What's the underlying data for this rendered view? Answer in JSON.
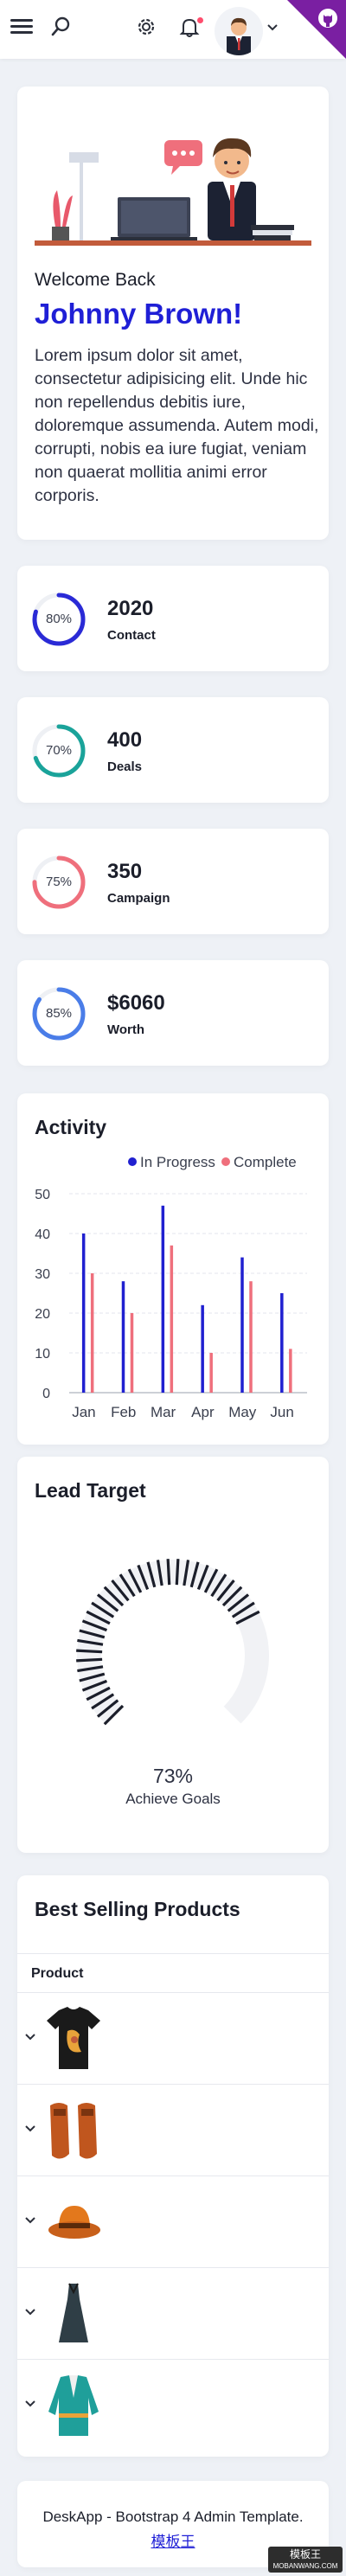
{
  "header": {
    "icons": [
      "menu-icon",
      "search-icon",
      "gear-icon",
      "bell-icon",
      "chevron-down-icon",
      "github-icon"
    ],
    "colors": {
      "corner": "#7a1fa2",
      "notification": "#ff4d6d"
    }
  },
  "welcome": {
    "greeting": "Welcome Back",
    "name": "Johnny Brown!",
    "text": "Lorem ipsum dolor sit amet, consectetur adipisicing elit. Unde hic non repellendus debitis iure, doloremque assumenda. Autem modi, corrupti, nobis ea iure fugiat, veniam non quaerat mollitia animi error corporis."
  },
  "stats": [
    {
      "percent_label": "80%",
      "percent": 80,
      "value": "2020",
      "label": "Contact",
      "color": "#2a2ad6"
    },
    {
      "percent_label": "70%",
      "percent": 70,
      "value": "400",
      "label": "Deals",
      "color": "#1aa39a"
    },
    {
      "percent_label": "75%",
      "percent": 75,
      "value": "350",
      "label": "Campaign",
      "color": "#ef6f7c"
    },
    {
      "percent_label": "85%",
      "percent": 85,
      "value": "$6060",
      "label": "Worth",
      "color": "#4a7de8"
    }
  ],
  "activity": {
    "title": "Activity",
    "legend": [
      {
        "name": "In Progress",
        "color": "#2020d0"
      },
      {
        "name": "Complete",
        "color": "#ef6f7c"
      }
    ]
  },
  "chart_data": {
    "type": "bar",
    "categories": [
      "Jan",
      "Feb",
      "Mar",
      "Apr",
      "May",
      "Jun"
    ],
    "series": [
      {
        "name": "In Progress",
        "values": [
          40,
          28,
          47,
          22,
          34,
          25
        ]
      },
      {
        "name": "Complete",
        "values": [
          30,
          20,
          37,
          10,
          28,
          11
        ]
      }
    ],
    "yticks": [
      "0",
      "10",
      "20",
      "30",
      "40",
      "50"
    ],
    "ylim": [
      0,
      50
    ],
    "grid": true,
    "legend": "top-right"
  },
  "lead": {
    "title": "Lead Target",
    "percent_label": "73%",
    "percent": 73,
    "caption": "Achieve Goals",
    "color": "#1b1e2a"
  },
  "products": {
    "title": "Best Selling Products",
    "column": "Product",
    "items": [
      {
        "image": "tshirt-image"
      },
      {
        "image": "shoes-image"
      },
      {
        "image": "hat-image"
      },
      {
        "image": "dress-image"
      },
      {
        "image": "jacket-image"
      }
    ]
  },
  "footer": {
    "text": "DeskApp - Bootstrap 4 Admin Template.",
    "link": "模板王"
  },
  "watermark": {
    "line1": "模板王",
    "line2": "MOBANWANG.COM"
  }
}
